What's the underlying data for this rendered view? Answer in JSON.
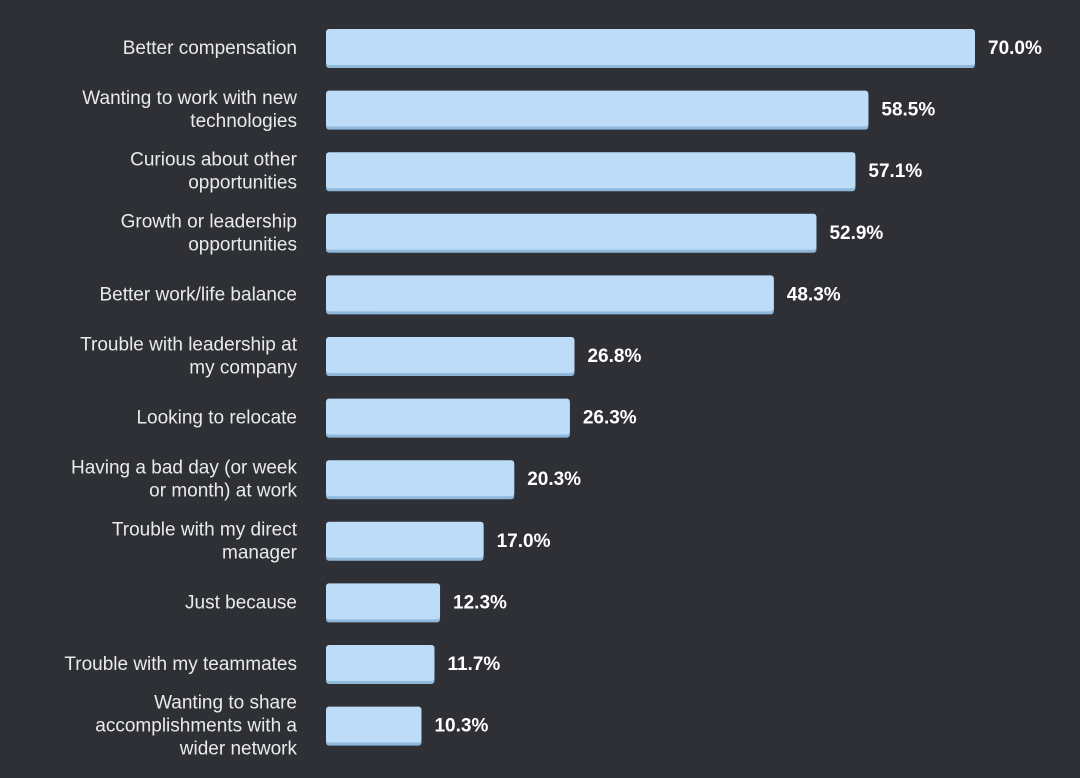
{
  "chart_data": {
    "type": "bar",
    "orientation": "horizontal",
    "title": "",
    "xlabel": "",
    "ylabel": "",
    "xlim": [
      0,
      70
    ],
    "grid": false,
    "value_suffix": "%",
    "categories": [
      "Better compensation",
      "Wanting to work with new technologies",
      "Curious about other opportunities",
      "Growth or leadership opportunities",
      "Better work/life balance",
      "Trouble with leadership at my company",
      "Looking to relocate",
      "Having a bad day (or week or month) at work",
      "Trouble with my direct manager",
      "Just because",
      "Trouble with my teammates",
      "Wanting to share accomplishments with a wider network"
    ],
    "category_lines": [
      [
        "Better compensation"
      ],
      [
        "Wanting to work with new",
        "technologies"
      ],
      [
        "Curious about other",
        "opportunities"
      ],
      [
        "Growth or leadership",
        "opportunities"
      ],
      [
        "Better work/life balance"
      ],
      [
        "Trouble with leadership at",
        "my company"
      ],
      [
        "Looking to relocate"
      ],
      [
        "Having a bad day (or week",
        "or month) at work"
      ],
      [
        "Trouble with my direct",
        "manager"
      ],
      [
        "Just because"
      ],
      [
        "Trouble with my teammates"
      ],
      [
        "Wanting to share",
        "accomplishments with a",
        "wider network"
      ]
    ],
    "values": [
      70.0,
      58.5,
      57.1,
      52.9,
      48.3,
      26.8,
      26.3,
      20.3,
      17.0,
      12.3,
      11.7,
      10.3
    ],
    "value_labels": [
      "70.0%",
      "58.5%",
      "57.1%",
      "52.9%",
      "48.3%",
      "26.8%",
      "26.3%",
      "20.3%",
      "17.0%",
      "12.3%",
      "11.7%",
      "10.3%"
    ],
    "colors": {
      "background": "#2e3036",
      "bar": "#bcdcf7",
      "bar_edge": "#8fb7da",
      "label_text": "#e9eaec",
      "value_text": "#ffffff"
    }
  }
}
